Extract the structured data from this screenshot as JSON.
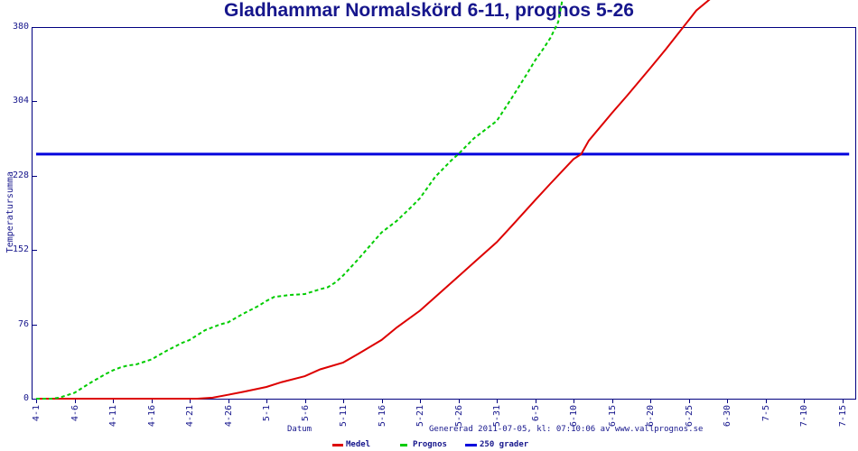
{
  "title": "Gladhammar Normalskörd 6-11, prognos 5-26",
  "colors": {
    "medel": "#dd0000",
    "prognos": "#00cc00",
    "grader250": "#0000dd",
    "axis": "#000080",
    "text": "#16168c"
  },
  "footer": {
    "x_axis_label": "Datum",
    "generated_caption": "Genererad 2011-07-05, kl: 07:10:06 av www.vallprognos.se"
  },
  "legend": [
    {
      "label": "Medel",
      "color": "#dd0000",
      "dashed": false
    },
    {
      "label": "Prognos",
      "color": "#00cc00",
      "dashed": true
    },
    {
      "label": "250 grader",
      "color": "#0000dd",
      "dashed": false
    }
  ],
  "chart_data": {
    "type": "line",
    "title": "Gladhammar Normalskörd 6-11, prognos 5-26",
    "xlabel": "Datum",
    "ylabel": "Temperatursumma",
    "x_unit": "days since 4-1, 5-day tick interval",
    "x_ticks": [
      "4-1",
      "4-6",
      "4-11",
      "4-16",
      "4-21",
      "4-26",
      "5-1",
      "5-6",
      "5-11",
      "5-16",
      "5-21",
      "5-26",
      "5-31",
      "6-5",
      "6-10",
      "6-15",
      "6-20",
      "6-25",
      "6-30",
      "7-5",
      "7-10",
      "7-15"
    ],
    "y_ticks": [
      0,
      76,
      152,
      228,
      304,
      380
    ],
    "ylim": [
      0,
      380
    ],
    "grid": false,
    "legend_position": "bottom",
    "series": [
      {
        "name": "250 grader",
        "color": "#0000dd",
        "style": "solid",
        "width": 3,
        "points": [
          [
            0,
            250
          ],
          [
            105.9,
            250
          ]
        ]
      },
      {
        "name": "Medel",
        "color": "#dd0000",
        "style": "solid",
        "width": 2,
        "points": [
          [
            0,
            0
          ],
          [
            10,
            0
          ],
          [
            18,
            0
          ],
          [
            21,
            0
          ],
          [
            23,
            1
          ],
          [
            25,
            4
          ],
          [
            27,
            7
          ],
          [
            30,
            12
          ],
          [
            32,
            17
          ],
          [
            35,
            23
          ],
          [
            37,
            30
          ],
          [
            40,
            37
          ],
          [
            42,
            46
          ],
          [
            45,
            60
          ],
          [
            47,
            73
          ],
          [
            50,
            90
          ],
          [
            52,
            104
          ],
          [
            55,
            125
          ],
          [
            57,
            139
          ],
          [
            60,
            160
          ],
          [
            62,
            177
          ],
          [
            65,
            203
          ],
          [
            67,
            220
          ],
          [
            70,
            245
          ],
          [
            71,
            250
          ],
          [
            72,
            264
          ],
          [
            75,
            292
          ],
          [
            77,
            310
          ],
          [
            80,
            338
          ],
          [
            82,
            357
          ],
          [
            84,
            377
          ],
          [
            86,
            397
          ],
          [
            88,
            410
          ]
        ]
      },
      {
        "name": "Prognos",
        "color": "#00cc00",
        "style": "dashed",
        "width": 2,
        "points": [
          [
            0,
            0
          ],
          [
            2,
            0
          ],
          [
            3,
            1
          ],
          [
            5,
            6
          ],
          [
            7,
            16
          ],
          [
            9,
            25
          ],
          [
            10,
            29
          ],
          [
            11,
            32
          ],
          [
            12,
            34
          ],
          [
            13,
            35
          ],
          [
            15,
            40
          ],
          [
            17,
            49
          ],
          [
            19,
            57
          ],
          [
            20,
            60
          ],
          [
            22,
            70
          ],
          [
            24,
            76
          ],
          [
            25,
            78
          ],
          [
            27,
            87
          ],
          [
            29,
            95
          ],
          [
            30,
            100
          ],
          [
            31,
            104
          ],
          [
            33,
            106
          ],
          [
            35,
            107
          ],
          [
            37,
            112
          ],
          [
            38,
            114
          ],
          [
            39,
            119
          ],
          [
            40,
            126
          ],
          [
            42,
            143
          ],
          [
            44,
            161
          ],
          [
            45,
            170
          ],
          [
            47,
            182
          ],
          [
            49,
            197
          ],
          [
            50,
            205
          ],
          [
            52,
            227
          ],
          [
            54,
            243
          ],
          [
            55,
            250
          ],
          [
            57,
            266
          ],
          [
            59,
            278
          ],
          [
            60,
            284
          ],
          [
            62,
            308
          ],
          [
            64,
            333
          ],
          [
            65,
            346
          ],
          [
            66,
            357
          ],
          [
            67,
            369
          ],
          [
            68,
            385
          ],
          [
            68.6,
            410
          ]
        ]
      }
    ],
    "annotations": {
      "medel_reaches_250": "6-11",
      "prognos_reaches_250": "5-26"
    }
  }
}
